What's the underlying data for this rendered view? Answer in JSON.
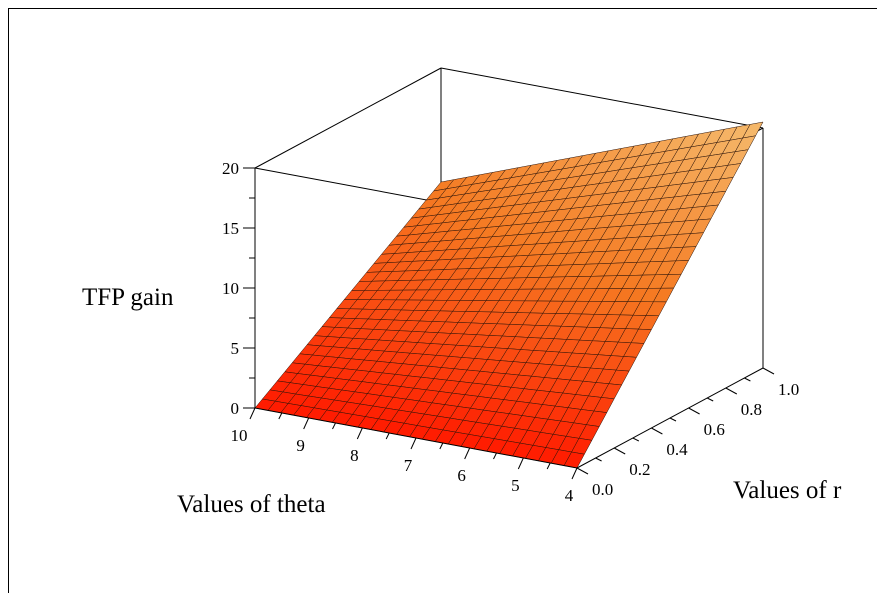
{
  "chart_data": {
    "type": "surface3d",
    "zlabel": "TFP gain",
    "xlabel": "Values of theta",
    "ylabel": "Values of r",
    "theta_range": [
      4,
      10
    ],
    "r_range": [
      0,
      1
    ],
    "z_range": [
      0,
      20
    ],
    "theta_ticks": [
      "10",
      "9",
      "8",
      "7",
      "6",
      "5",
      "4"
    ],
    "r_ticks": [
      "0.0",
      "0.2",
      "0.4",
      "0.6",
      "0.8",
      "1.0"
    ],
    "z_ticks": [
      "0",
      "5",
      "10",
      "15",
      "20"
    ],
    "grid_n": 25,
    "surface_corners": [
      {
        "theta": 4,
        "r": 0,
        "tfp_gain": 0
      },
      {
        "theta": 10,
        "r": 0,
        "tfp_gain": 0
      },
      {
        "theta": 10,
        "r": 1,
        "tfp_gain": 10.5
      },
      {
        "theta": 4,
        "r": 1,
        "tfp_gain": 20.5
      }
    ],
    "color_scale": {
      "low": "#ff1a00",
      "mid": "#f57a22",
      "high": "#f5b86a"
    }
  }
}
